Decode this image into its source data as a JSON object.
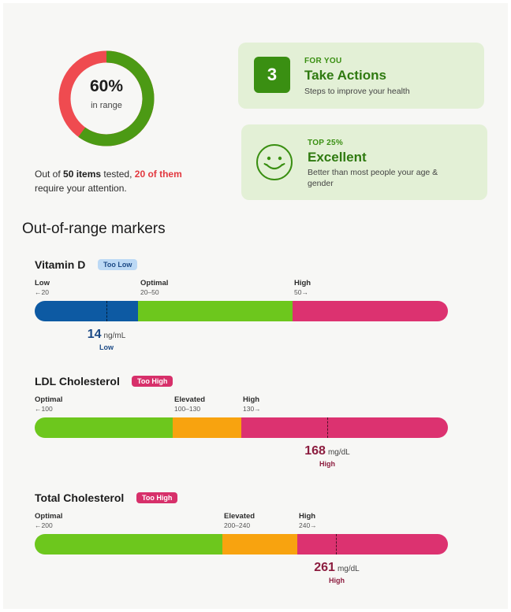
{
  "summary": {
    "percent_label": "60%",
    "percent_value": 0.6,
    "sub_label": "in range",
    "text_prefix": "Out of ",
    "text_items": "50 items",
    "text_mid": " tested, ",
    "text_attention": "20 of them",
    "text_suffix": " require your attention.",
    "colors": {
      "in_range": "#4c9a14",
      "out_of_range": "#ef4b50"
    }
  },
  "cards": {
    "actions": {
      "number": "3",
      "kicker": "FOR YOU",
      "title": "Take Actions",
      "description": "Steps to improve your health"
    },
    "rank": {
      "icon": "smiley-face-icon",
      "kicker": "TOP 25%",
      "title": "Excellent",
      "description": "Better than most people your age & gender"
    }
  },
  "section_title": "Out-of-range markers",
  "colors": {
    "blue": "#0d5aa3",
    "green": "#6dc71d",
    "orange": "#f8a30f",
    "pink": "#dc3270",
    "value_blue": "#1c4a86",
    "value_red": "#8c1d3f"
  },
  "markers": [
    {
      "name": "Vitamin D",
      "badge": "Too Low",
      "zones": [
        {
          "label": "Low",
          "range": "←20"
        },
        {
          "label": "Optimal",
          "range": "20–50"
        },
        {
          "label": "High",
          "range": "50→"
        }
      ],
      "value": "14",
      "unit": "ng/mL",
      "status": "Low"
    },
    {
      "name": "LDL Cholesterol",
      "badge": "Too High",
      "zones": [
        {
          "label": "Optimal",
          "range": "←100"
        },
        {
          "label": "Elevated",
          "range": "100–130"
        },
        {
          "label": "High",
          "range": "130→"
        }
      ],
      "value": "168",
      "unit": "mg/dL",
      "status": "High"
    },
    {
      "name": "Total Cholesterol",
      "badge": "Too High",
      "zones": [
        {
          "label": "Optimal",
          "range": "←200"
        },
        {
          "label": "Elevated",
          "range": "200–240"
        },
        {
          "label": "High",
          "range": "240→"
        }
      ],
      "value": "261",
      "unit": "mg/dL",
      "status": "High"
    }
  ]
}
